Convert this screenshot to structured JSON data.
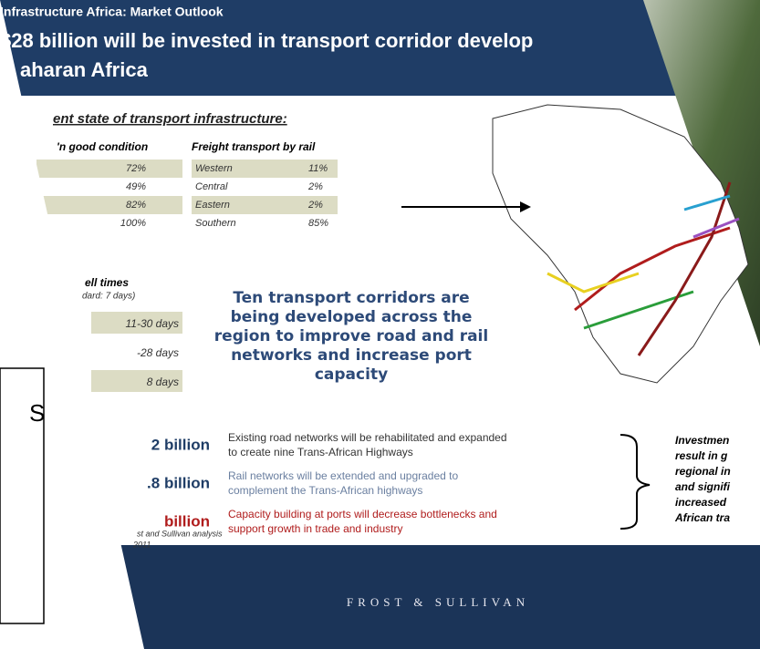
{
  "side_box": {
    "text": "S"
  },
  "header": {
    "kicker": "Infrastructure Africa: Market Outlook",
    "title_lines": [
      "$28 billion will be invested in transport corridor develop",
      "aharan Africa"
    ]
  },
  "state": {
    "heading": "ent state of transport infrastructure:",
    "roads": {
      "header": "'n good condition",
      "values": [
        "72%",
        "49%",
        "82%",
        "100%"
      ]
    },
    "rail": {
      "header": "Freight transport by rail",
      "rows": [
        [
          "Western",
          "11%"
        ],
        [
          "Central",
          "2%"
        ],
        [
          "Eastern",
          "2%"
        ],
        [
          "Southern",
          "85%"
        ]
      ]
    },
    "dwell": {
      "header": "ell times",
      "note": "dard: 7 days)",
      "values": [
        "11-30 days",
        "-28 days",
        "8 days"
      ]
    }
  },
  "callout": [
    "Ten transport corridors are",
    "being developed across the",
    "region to improve road and rail",
    "networks and increase port",
    "capacity"
  ],
  "investments": [
    {
      "amount": "2 billion",
      "text": [
        "Existing road networks will be rehabilitated and expanded",
        "to create nine Trans-African Highways"
      ]
    },
    {
      "amount": ".8 billion",
      "text": [
        "Rail networks will be extended and upgraded to",
        "complement the Trans-African highways"
      ]
    },
    {
      "amount": "billion",
      "text": [
        "Capacity building at ports will decrease bottlenecks and",
        "support growth in trade and industry"
      ]
    }
  ],
  "conclusion": [
    "Investmen",
    "result in g",
    "regional in",
    "and signifi",
    "increased",
    "African tra"
  ],
  "source": [
    "st and Sullivan analysis",
    "2011"
  ],
  "footer": "FROST & SULLIVAN"
}
